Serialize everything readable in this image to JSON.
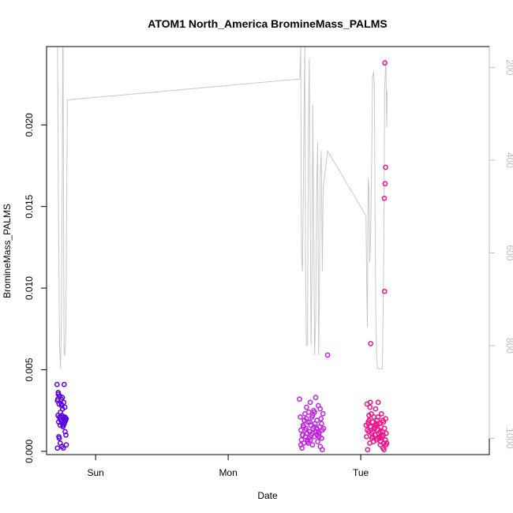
{
  "chart_data": {
    "type": "scatter",
    "title": "ATOM1 North_America BromineMass_PALMS",
    "xlabel": "Date",
    "ylabel": "BromineMass_PALMS",
    "x_axis": {
      "scale": "time",
      "ticks": [
        {
          "label": "Sun",
          "value": 1.0
        },
        {
          "label": "Mon",
          "value": 2.0
        },
        {
          "label": "Tue",
          "value": 3.0
        }
      ],
      "range": [
        0.63,
        3.97
      ]
    },
    "y_axis": {
      "range": [
        -0.0002,
        0.0248
      ],
      "ticks": [
        {
          "label": "0.000",
          "value": 0.0
        },
        {
          "label": "0.005",
          "value": 0.005
        },
        {
          "label": "0.010",
          "value": 0.01
        },
        {
          "label": "0.015",
          "value": 0.015
        },
        {
          "label": "0.020",
          "value": 0.02
        }
      ]
    },
    "right_axis": {
      "description": "altitude/pressure overlay (inverted)",
      "range_top": 155,
      "range_bottom": 1035,
      "ticks": [
        {
          "label": "200",
          "value": 200
        },
        {
          "label": "400",
          "value": 400
        },
        {
          "label": "600",
          "value": 600
        },
        {
          "label": "800",
          "value": 800
        },
        {
          "label": "1000",
          "value": 1000
        }
      ],
      "line_color": "#c8c8c8"
    },
    "pressure_line": [
      [
        0.713,
        155
      ],
      [
        0.72,
        500
      ],
      [
        0.728,
        800
      ],
      [
        0.735,
        850
      ],
      [
        0.742,
        750
      ],
      [
        0.748,
        450
      ],
      [
        0.752,
        160
      ],
      [
        0.755,
        155
      ],
      [
        0.758,
        500
      ],
      [
        0.762,
        820
      ],
      [
        0.768,
        820
      ],
      [
        0.775,
        780
      ],
      [
        0.782,
        500
      ],
      [
        0.787,
        270
      ],
      [
        2.54,
        225
      ],
      [
        2.547,
        155
      ],
      [
        2.553,
        600
      ],
      [
        2.56,
        640
      ],
      [
        2.567,
        480
      ],
      [
        2.572,
        300
      ],
      [
        2.578,
        155
      ],
      [
        2.584,
        640
      ],
      [
        2.59,
        800
      ],
      [
        2.598,
        800
      ],
      [
        2.605,
        330
      ],
      [
        2.612,
        180
      ],
      [
        2.618,
        450
      ],
      [
        2.625,
        800
      ],
      [
        2.632,
        640
      ],
      [
        2.638,
        280
      ],
      [
        2.645,
        520
      ],
      [
        2.652,
        820
      ],
      [
        2.66,
        740
      ],
      [
        2.667,
        480
      ],
      [
        2.675,
        360
      ],
      [
        2.682,
        820
      ],
      [
        2.688,
        680
      ],
      [
        2.695,
        430
      ],
      [
        2.702,
        380
      ],
      [
        2.71,
        640
      ],
      [
        2.717,
        460
      ],
      [
        2.75,
        380
      ],
      [
        3.04,
        520
      ],
      [
        3.045,
        660
      ],
      [
        3.05,
        760
      ],
      [
        3.056,
        440
      ],
      [
        3.062,
        460
      ],
      [
        3.068,
        620
      ],
      [
        3.075,
        560
      ],
      [
        3.082,
        420
      ],
      [
        3.09,
        220
      ],
      [
        3.097,
        210
      ],
      [
        3.103,
        240
      ],
      [
        3.108,
        520
      ],
      [
        3.113,
        720
      ],
      [
        3.12,
        820
      ],
      [
        3.127,
        850
      ],
      [
        3.163,
        850
      ],
      [
        3.17,
        700
      ],
      [
        3.175,
        550
      ],
      [
        3.18,
        250
      ],
      [
        3.19,
        180
      ],
      [
        3.196,
        330
      ],
      [
        3.2,
        250
      ]
    ],
    "series": [
      {
        "color": "#5a00e0",
        "x": [
          0.709,
          0.712,
          0.716,
          0.718,
          0.721,
          0.724,
          0.727,
          0.73,
          0.733,
          0.735,
          0.738,
          0.741,
          0.744,
          0.746,
          0.749,
          0.751,
          0.754,
          0.757,
          0.76,
          0.763,
          0.765,
          0.768,
          0.77,
          0.773,
          0.776,
          0.779,
          0.712,
          0.722,
          0.733,
          0.746,
          0.758,
          0.769,
          0.715,
          0.731,
          0.749,
          0.763,
          0.719,
          0.739,
          0.757,
          0.774,
          0.726,
          0.741,
          0.754,
          0.767,
          0.778
        ],
        "y": [
          0.0041,
          0.0031,
          0.0022,
          0.0036,
          0.0018,
          0.0029,
          0.0021,
          0.0034,
          0.0016,
          0.0024,
          0.0019,
          0.0032,
          0.0028,
          0.0022,
          0.0017,
          0.0026,
          0.0015,
          0.0021,
          0.003,
          0.0041,
          0.0019,
          0.0027,
          0.0012,
          0.002,
          0.001,
          0.0004,
          0.0002,
          0.0009,
          0.0005,
          0.0003,
          0.0016,
          0.0021,
          0.0032,
          0.002,
          0.0033,
          0.0017,
          0.0035,
          0.0021,
          0.0002,
          0.0019,
          0.0008,
          0.0029,
          0.0016,
          0.0018,
          0.002
        ]
      },
      {
        "color": "#c020e0",
        "x": [
          2.538,
          2.544,
          2.549,
          2.553,
          2.557,
          2.562,
          2.566,
          2.571,
          2.575,
          2.579,
          2.583,
          2.587,
          2.591,
          2.595,
          2.599,
          2.603,
          2.607,
          2.611,
          2.615,
          2.619,
          2.623,
          2.627,
          2.632,
          2.636,
          2.64,
          2.645,
          2.65,
          2.655,
          2.66,
          2.665,
          2.67,
          2.675,
          2.68,
          2.685,
          2.69,
          2.695,
          2.7,
          2.705,
          2.71,
          2.715,
          2.548,
          2.566,
          2.58,
          2.598,
          2.616,
          2.634,
          2.652,
          2.668,
          2.686,
          2.704,
          2.56,
          2.59,
          2.62,
          2.65,
          2.68,
          2.71,
          2.574,
          2.606,
          2.638,
          2.672,
          2.694,
          2.72
        ],
        "y": [
          0.0032,
          0.0021,
          0.0013,
          0.0007,
          0.0002,
          0.001,
          0.0015,
          0.0005,
          0.0019,
          0.0023,
          0.0009,
          0.0014,
          0.0027,
          0.0011,
          0.0006,
          0.0018,
          0.0024,
          0.0008,
          0.0012,
          0.003,
          0.0016,
          0.001,
          0.0021,
          0.0004,
          0.0014,
          0.0025,
          0.0009,
          0.0017,
          0.0033,
          0.0012,
          0.0019,
          0.0006,
          0.0028,
          0.0011,
          0.0015,
          0.0003,
          0.002,
          0.0008,
          0.0013,
          0.0023,
          0.0004,
          0.0016,
          0.0013,
          0.0007,
          0.0018,
          0.0011,
          0.0024,
          0.0014,
          0.0009,
          0.0017,
          0.001,
          0.002,
          0.0007,
          0.0015,
          0.0012,
          0.0001,
          0.0019,
          0.0005,
          0.0022,
          0.001,
          0.0026,
          0.0014
        ],
        "extra": [
          [
            2.75,
            0.0059
          ]
        ]
      },
      {
        "color": "#f0108a",
        "x": [
          3.04,
          3.044,
          3.048,
          3.052,
          3.056,
          3.06,
          3.064,
          3.068,
          3.072,
          3.076,
          3.08,
          3.084,
          3.088,
          3.092,
          3.096,
          3.1,
          3.104,
          3.108,
          3.112,
          3.116,
          3.12,
          3.124,
          3.128,
          3.132,
          3.136,
          3.14,
          3.144,
          3.148,
          3.152,
          3.156,
          3.16,
          3.164,
          3.168,
          3.172,
          3.176,
          3.18,
          3.184,
          3.188,
          3.192,
          3.196,
          3.05,
          3.07,
          3.09,
          3.11,
          3.13,
          3.15,
          3.17,
          3.19,
          3.058,
          3.082,
          3.106,
          3.126,
          3.146,
          3.166,
          3.186,
          3.062,
          3.098,
          3.122,
          3.142,
          3.174
        ],
        "y": [
          0.0016,
          0.0009,
          0.0029,
          0.0001,
          0.0017,
          0.0012,
          0.0019,
          0.0005,
          0.003,
          0.0015,
          0.0023,
          0.0008,
          0.0018,
          0.0012,
          0.0006,
          0.0021,
          0.0014,
          0.001,
          0.0026,
          0.0016,
          0.0007,
          0.0019,
          0.0013,
          0.003,
          0.0011,
          0.0017,
          0.0008,
          0.0004,
          0.0015,
          0.0023,
          0.0009,
          0.0012,
          0.0002,
          0.0018,
          0.0001,
          0.0014,
          0.0007,
          0.002,
          0.0011,
          0.0005,
          0.0013,
          0.0027,
          0.0009,
          0.0016,
          0.0021,
          0.0006,
          0.001,
          0.0004,
          0.0018,
          0.0011,
          0.0015,
          0.0008,
          0.0012,
          0.0019,
          0.0007,
          0.0022,
          0.0014,
          0.0017,
          0.0009,
          0.0005
        ],
        "extra": [
          [
            3.075,
            0.0066
          ],
          [
            3.18,
            0.0098
          ],
          [
            3.178,
            0.0155
          ],
          [
            3.184,
            0.0164
          ],
          [
            3.187,
            0.0174
          ],
          [
            3.182,
            0.0238
          ]
        ]
      }
    ]
  }
}
